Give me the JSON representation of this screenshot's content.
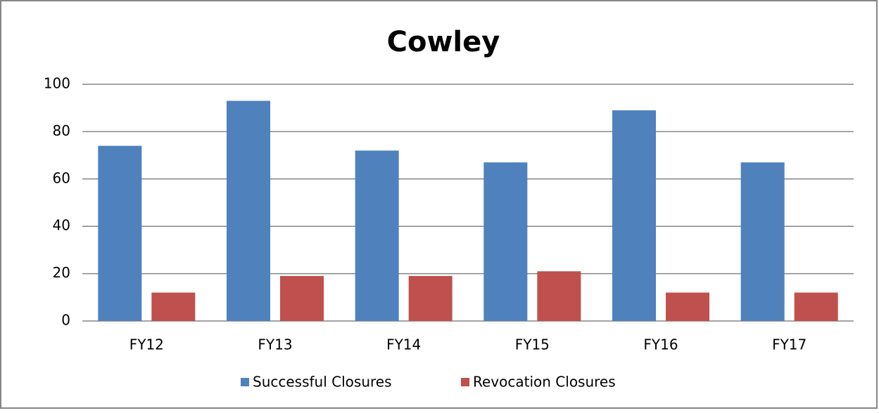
{
  "chart_data": {
    "type": "bar",
    "title": "Cowley",
    "categories": [
      "FY12",
      "FY13",
      "FY14",
      "FY15",
      "FY16",
      "FY17"
    ],
    "series": [
      {
        "name": "Successful Closures",
        "color": "#4f81bd",
        "values": [
          74,
          93,
          72,
          67,
          89,
          67
        ]
      },
      {
        "name": "Revocation Closures",
        "color": "#c0504d",
        "values": [
          12,
          19,
          19,
          21,
          12,
          12
        ]
      }
    ],
    "ylim": [
      0,
      100
    ],
    "yticks": [
      0,
      20,
      40,
      60,
      80,
      100
    ],
    "grid": true,
    "legend": "bottom"
  }
}
